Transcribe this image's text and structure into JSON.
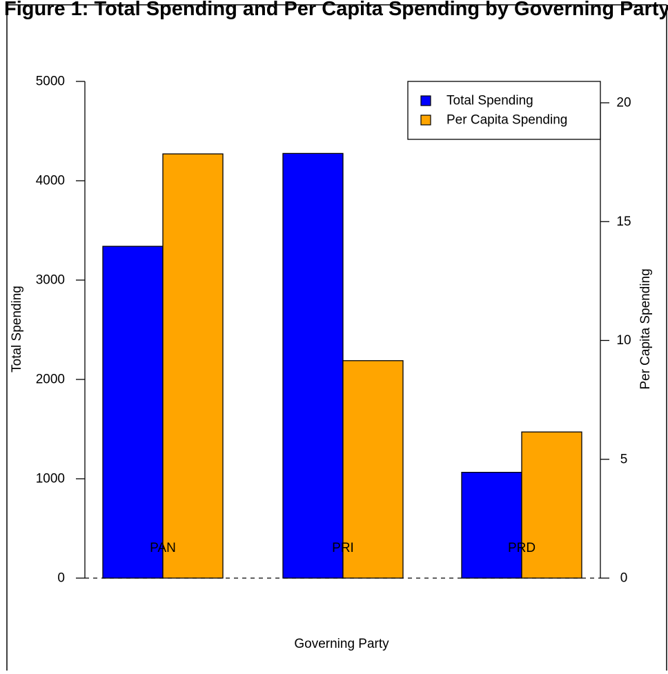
{
  "title": "Figure 1: Total Spending and Per Capita Spending by Governing Party",
  "chart_data": {
    "type": "bar",
    "categories": [
      "PAN",
      "PRI",
      "PRD"
    ],
    "series": [
      {
        "name": "Total Spending",
        "axis": "left",
        "color": "#0000FF",
        "values": [
          3340,
          4275,
          1065
        ]
      },
      {
        "name": "Per Capita Spending",
        "axis": "right",
        "color": "#FFA500",
        "values": [
          17.85,
          9.15,
          6.15
        ]
      }
    ],
    "xlabel": "Governing Party",
    "ylabel": "Total Spending",
    "ylabel_right": "Per Capita Spending",
    "ylim": [
      0,
      5000
    ],
    "ylim_right": [
      0,
      20.8
    ],
    "yticks": [
      0,
      1000,
      2000,
      3000,
      4000,
      5000
    ],
    "yticks_right": [
      0,
      5,
      10,
      15,
      20
    ],
    "baseline": "dashed",
    "grid": false,
    "legend": {
      "placement": "top-right"
    }
  }
}
